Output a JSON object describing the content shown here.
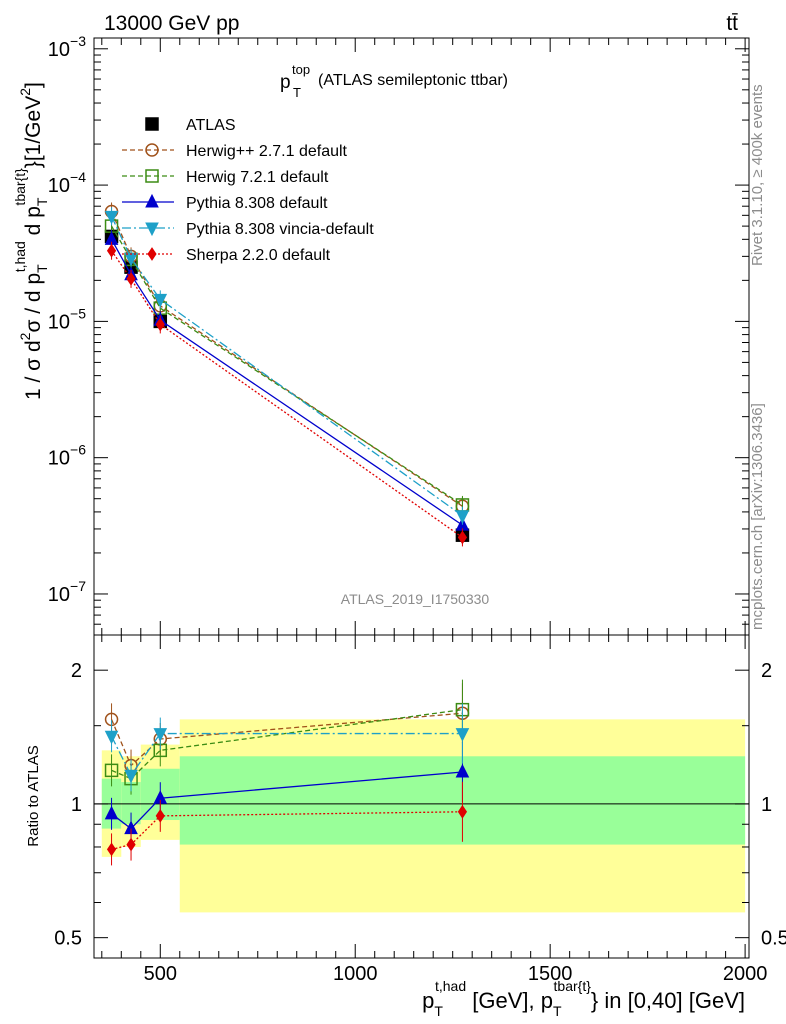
{
  "header": {
    "energy_label": "13000 GeV pp",
    "process_label": "tt̄"
  },
  "side_labels": {
    "rivet": "Rivet 3.1.10, ≥ 400k events",
    "mcplots": "mcplots.cern.ch [arXiv:1306.3436]"
  },
  "plot_title": {
    "main": "p",
    "sup": "top",
    "sub": "T",
    "rest": " (ATLAS semileptonic ttbar)"
  },
  "analysis_id": "ATLAS_2019_I1750330",
  "main_ylabel": {
    "prefix": "1 / σ d",
    "sup_2": "2",
    "sigma_d": "σ / d p",
    "sub_T1": "T",
    "sup_thad": "t,had",
    "d_p": " d p",
    "sub_T2": "T",
    "sup_tbar": "tbar{t}",
    "unit_a": "}[1/GeV",
    "unit_sup": "2",
    "unit_b": "]"
  },
  "ratio_ylabel": "Ratio to ATLAS",
  "xlabel": {
    "p1": "p",
    "sub1": "T",
    "sup1": "t,had",
    "mid": " [GeV], p",
    "sub2": "T",
    "sup2": "tbar{t}",
    "tail": "} in [0,40] [GeV]"
  },
  "colors": {
    "atlas": "#000000",
    "herwigpp": "#a0521b",
    "herwig7": "#3c8c14",
    "pythia": "#0000cc",
    "vincia": "#1ea0c8",
    "sherpa": "#e00000",
    "band_outer": "#ffff99",
    "band_inner": "#99ff99"
  },
  "chart_data": [
    {
      "type": "line",
      "panel": "main",
      "yscale": "log",
      "xlim": [
        330,
        2010
      ],
      "ylim": [
        5e-08,
        0.0012
      ],
      "yticks": [
        1e-07,
        1e-06,
        1e-05,
        0.0001,
        0.001
      ],
      "ytick_labels": [
        {
          "base": "10",
          "exp": "−7"
        },
        {
          "base": "10",
          "exp": "−6"
        },
        {
          "base": "10",
          "exp": "−5"
        },
        {
          "base": "10",
          "exp": "−4"
        },
        {
          "base": "10",
          "exp": "−3"
        }
      ],
      "x": [
        375,
        425,
        500,
        1275
      ],
      "series": [
        {
          "name": "ATLAS",
          "key": "atlas",
          "values": [
            4.2e-05,
            2.5e-05,
            1e-05,
            2.7e-07
          ]
        },
        {
          "name": "Herwig++ 2.7.1 default",
          "key": "herwigpp",
          "values": [
            6.4e-05,
            3e-05,
            1.3e-05,
            4.4e-07
          ]
        },
        {
          "name": "Herwig 7.2.1 default",
          "key": "herwig7",
          "values": [
            5e-05,
            2.85e-05,
            1.25e-05,
            4.5e-07
          ]
        },
        {
          "name": "Pythia 8.308 default",
          "key": "pythia",
          "values": [
            4e-05,
            2.2e-05,
            1.02e-05,
            3.2e-07
          ]
        },
        {
          "name": "Pythia 8.308 vincia-default",
          "key": "vincia",
          "values": [
            5.9e-05,
            2.9e-05,
            1.45e-05,
            3.75e-07
          ]
        },
        {
          "name": "Sherpa 2.2.0 default",
          "key": "sherpa",
          "values": [
            3.3e-05,
            2.05e-05,
            9.5e-06,
            2.6e-07
          ]
        }
      ]
    },
    {
      "type": "line",
      "panel": "ratio",
      "yscale": "log",
      "xlim": [
        330,
        2010
      ],
      "ylim": [
        0.45,
        2.4
      ],
      "yticks": [
        0.5,
        1,
        2
      ],
      "ytick_labels": [
        "0.5",
        "1",
        "2"
      ],
      "xticks": [
        500,
        1000,
        1500,
        2000
      ],
      "xtick_labels": [
        "500",
        "1000",
        "1500",
        "2000"
      ],
      "x": [
        375,
        425,
        500,
        1275
      ],
      "bands": [
        {
          "x0": 350,
          "x1": 400,
          "outer": [
            0.76,
            1.32
          ],
          "inner": [
            0.88,
            1.14
          ]
        },
        {
          "x0": 400,
          "x1": 450,
          "outer": [
            0.8,
            1.28
          ],
          "inner": [
            0.9,
            1.12
          ]
        },
        {
          "x0": 450,
          "x1": 550,
          "outer": [
            0.83,
            1.36
          ],
          "inner": [
            0.92,
            1.2
          ]
        },
        {
          "x0": 550,
          "x1": 2000,
          "outer": [
            0.57,
            1.55
          ],
          "inner": [
            0.81,
            1.28
          ]
        }
      ],
      "series": [
        {
          "name": "Herwig++ 2.7.1 default",
          "key": "herwigpp",
          "values": [
            1.55,
            1.22,
            1.4,
            1.6
          ]
        },
        {
          "name": "Herwig 7.2.1 default",
          "key": "herwig7",
          "values": [
            1.19,
            1.14,
            1.32,
            1.63
          ]
        },
        {
          "name": "Pythia 8.308 default",
          "key": "pythia",
          "values": [
            0.95,
            0.88,
            1.03,
            1.18
          ]
        },
        {
          "name": "Pythia 8.308 vincia-default",
          "key": "vincia",
          "values": [
            1.42,
            1.16,
            1.44,
            1.44
          ]
        },
        {
          "name": "Sherpa 2.2.0 default",
          "key": "sherpa",
          "values": [
            0.79,
            0.81,
            0.94,
            0.96
          ]
        }
      ]
    }
  ]
}
